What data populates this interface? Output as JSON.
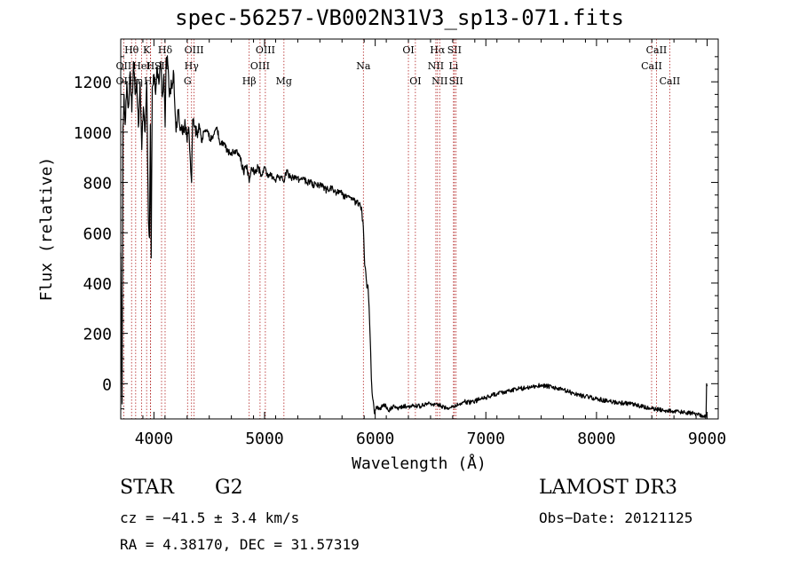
{
  "chart_data": {
    "type": "line",
    "title": "spec-56257-VB002N31V3_sp13-071.fits",
    "xlabel": "Wavelength (Å)",
    "ylabel": "Flux (relative)",
    "xlim": [
      3700,
      9100
    ],
    "ylim": [
      -140,
      1370
    ],
    "xticks": [
      4000,
      5000,
      6000,
      7000,
      8000,
      9000
    ],
    "yticks": [
      0,
      200,
      400,
      600,
      800,
      1000,
      1200
    ],
    "grid": false,
    "series": [
      {
        "name": "flux",
        "x": [
          3700,
          3705,
          3712,
          3720,
          3730,
          3740,
          3755,
          3770,
          3785,
          3800,
          3815,
          3830,
          3845,
          3860,
          3875,
          3890,
          3905,
          3920,
          3935,
          3950,
          3960,
          3968,
          3975,
          3985,
          4000,
          4015,
          4030,
          4045,
          4060,
          4075,
          4090,
          4101,
          4110,
          4125,
          4140,
          4160,
          4180,
          4200,
          4220,
          4240,
          4260,
          4280,
          4300,
          4315,
          4330,
          4340,
          4350,
          4370,
          4390,
          4410,
          4430,
          4450,
          4480,
          4510,
          4540,
          4570,
          4600,
          4630,
          4660,
          4690,
          4720,
          4750,
          4780,
          4810,
          4840,
          4861,
          4880,
          4910,
          4940,
          4970,
          5000,
          5030,
          5060,
          5090,
          5120,
          5150,
          5175,
          5200,
          5230,
          5260,
          5290,
          5320,
          5350,
          5380,
          5410,
          5440,
          5470,
          5500,
          5530,
          5560,
          5590,
          5620,
          5650,
          5680,
          5710,
          5740,
          5770,
          5800,
          5830,
          5860,
          5880,
          5893,
          5905,
          5915,
          5925,
          5935,
          5945,
          5955,
          5965,
          5975,
          5985,
          5995,
          6010,
          6040,
          6080,
          6120,
          6160,
          6200,
          6250,
          6300,
          6350,
          6400,
          6450,
          6500,
          6563,
          6600,
          6650,
          6700,
          6750,
          6800,
          6850,
          6900,
          6950,
          7000,
          7100,
          7200,
          7300,
          7400,
          7500,
          7600,
          7700,
          7800,
          7900,
          8000,
          8100,
          8200,
          8300,
          8400,
          8500,
          8600,
          8700,
          8800,
          8900,
          8950,
          8990,
          8995,
          9000
        ],
        "y": [
          520,
          300,
          -80,
          1020,
          1150,
          1030,
          1200,
          1100,
          1240,
          1080,
          1280,
          1150,
          1210,
          1020,
          1200,
          930,
          1100,
          1000,
          1200,
          650,
          580,
          1030,
          500,
          1180,
          1230,
          1150,
          1260,
          1190,
          1280,
          1140,
          1230,
          1020,
          1290,
          1270,
          1140,
          1190,
          1230,
          1000,
          1080,
          1020,
          990,
          1050,
          960,
          1020,
          880,
          800,
          1050,
          1020,
          1000,
          1030,
          960,
          1000,
          1010,
          970,
          990,
          1020,
          950,
          960,
          930,
          910,
          920,
          930,
          900,
          840,
          870,
          800,
          860,
          840,
          860,
          830,
          860,
          820,
          830,
          810,
          820,
          820,
          800,
          850,
          820,
          820,
          810,
          810,
          820,
          800,
          800,
          790,
          790,
          790,
          780,
          770,
          775,
          770,
          760,
          760,
          750,
          740,
          740,
          730,
          720,
          720,
          680,
          620,
          470,
          440,
          380,
          390,
          300,
          180,
          20,
          -50,
          -80,
          -120,
          -90,
          -100,
          -80,
          -110,
          -90,
          -100,
          -90,
          -90,
          -85,
          -90,
          -80,
          -80,
          -85,
          -90,
          -95,
          -90,
          -85,
          -70,
          -75,
          -70,
          -60,
          -55,
          -40,
          -30,
          -20,
          -15,
          -5,
          -15,
          -25,
          -40,
          -50,
          -60,
          -70,
          -75,
          -80,
          -90,
          -100,
          -105,
          -110,
          -115,
          -120,
          -125,
          -130,
          0,
          -10
        ]
      }
    ],
    "line_markers": [
      {
        "name": "Hθ",
        "wavelength": 3798,
        "row": 1
      },
      {
        "name": "OII",
        "wavelength": 3727,
        "row": 2
      },
      {
        "name": "OII",
        "wavelength": 3727,
        "row": 3
      },
      {
        "name": "HeI",
        "wavelength": 3889,
        "row": 2
      },
      {
        "name": "Hη",
        "wavelength": 3835,
        "row": 3
      },
      {
        "name": "K",
        "wavelength": 3934,
        "row": 1
      },
      {
        "name": "Hε",
        "wavelength": 3970,
        "row": 3
      },
      {
        "name": "H",
        "wavelength": 3968,
        "row": 2
      },
      {
        "name": "Hδ",
        "wavelength": 4101,
        "row": 1
      },
      {
        "name": "SII",
        "wavelength": 4069,
        "row": 2
      },
      {
        "name": "OIII",
        "wavelength": 4363,
        "row": 1
      },
      {
        "name": "Hγ",
        "wavelength": 4340,
        "row": 2
      },
      {
        "name": "G",
        "wavelength": 4304,
        "row": 3
      },
      {
        "name": "Hβ",
        "wavelength": 4861,
        "row": 3
      },
      {
        "name": "OIII",
        "wavelength": 5007,
        "row": 1
      },
      {
        "name": "OIII",
        "wavelength": 4959,
        "row": 2
      },
      {
        "name": "Mg",
        "wavelength": 5175,
        "row": 3
      },
      {
        "name": "Na",
        "wavelength": 5893,
        "row": 2
      },
      {
        "name": "OI",
        "wavelength": 6300,
        "row": 1
      },
      {
        "name": "OI",
        "wavelength": 6363,
        "row": 3
      },
      {
        "name": "Hα",
        "wavelength": 6563,
        "row": 1
      },
      {
        "name": "NII",
        "wavelength": 6548,
        "row": 2
      },
      {
        "name": "NII",
        "wavelength": 6583,
        "row": 3
      },
      {
        "name": "SII",
        "wavelength": 6716,
        "row": 1
      },
      {
        "name": "Li",
        "wavelength": 6708,
        "row": 2
      },
      {
        "name": "SII",
        "wavelength": 6731,
        "row": 3
      },
      {
        "name": "CaII",
        "wavelength": 8542,
        "row": 1
      },
      {
        "name": "CaII",
        "wavelength": 8498,
        "row": 2
      },
      {
        "name": "CaII",
        "wavelength": 8662,
        "row": 3
      }
    ],
    "colors": {
      "spectrum": "#000000",
      "markers": "#b22222"
    }
  },
  "footer": {
    "obj_class": "STAR",
    "subclass": "G2",
    "survey": "LAMOST DR3",
    "cz": "cz = −41.5 ± 3.4 km/s",
    "obs_date": "Obs−Date: 20121125",
    "radec": "RA =   4.38170, DEC =  31.57319"
  }
}
